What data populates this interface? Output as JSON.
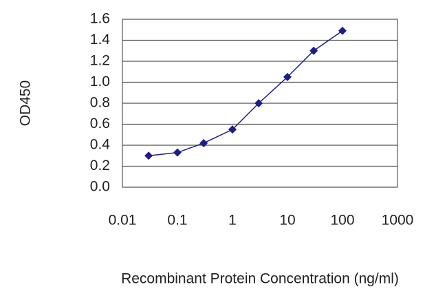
{
  "chart_data": {
    "type": "line",
    "x_label": "Recombinant Protein Concentration (ng/ml)",
    "y_label": "OD450",
    "x": [
      0.03,
      0.1,
      0.3,
      1,
      3,
      10,
      30,
      100
    ],
    "values": [
      0.3,
      0.33,
      0.42,
      0.55,
      0.8,
      1.05,
      1.3,
      1.49
    ],
    "color": "#1c1c8a",
    "xlim": [
      0.01,
      1000
    ],
    "xticks": [
      0.01,
      0.1,
      1,
      10,
      100,
      1000
    ],
    "xlog": true,
    "ylim": [
      0,
      1.6
    ],
    "yticks": [
      {
        "value": 0,
        "label": "0.0"
      },
      {
        "value": 0.2,
        "label": "0.2"
      },
      {
        "value": 0.4,
        "label": "0.4"
      },
      {
        "value": 0.6,
        "label": "0.6"
      },
      {
        "value": 0.8,
        "label": "0.8"
      },
      {
        "value": 1,
        "label": "1.0"
      },
      {
        "value": 1.2,
        "label": "1.2"
      },
      {
        "value": 1.4,
        "label": "1.4"
      },
      {
        "value": 1.6,
        "label": "1.6"
      }
    ],
    "grid": true
  }
}
